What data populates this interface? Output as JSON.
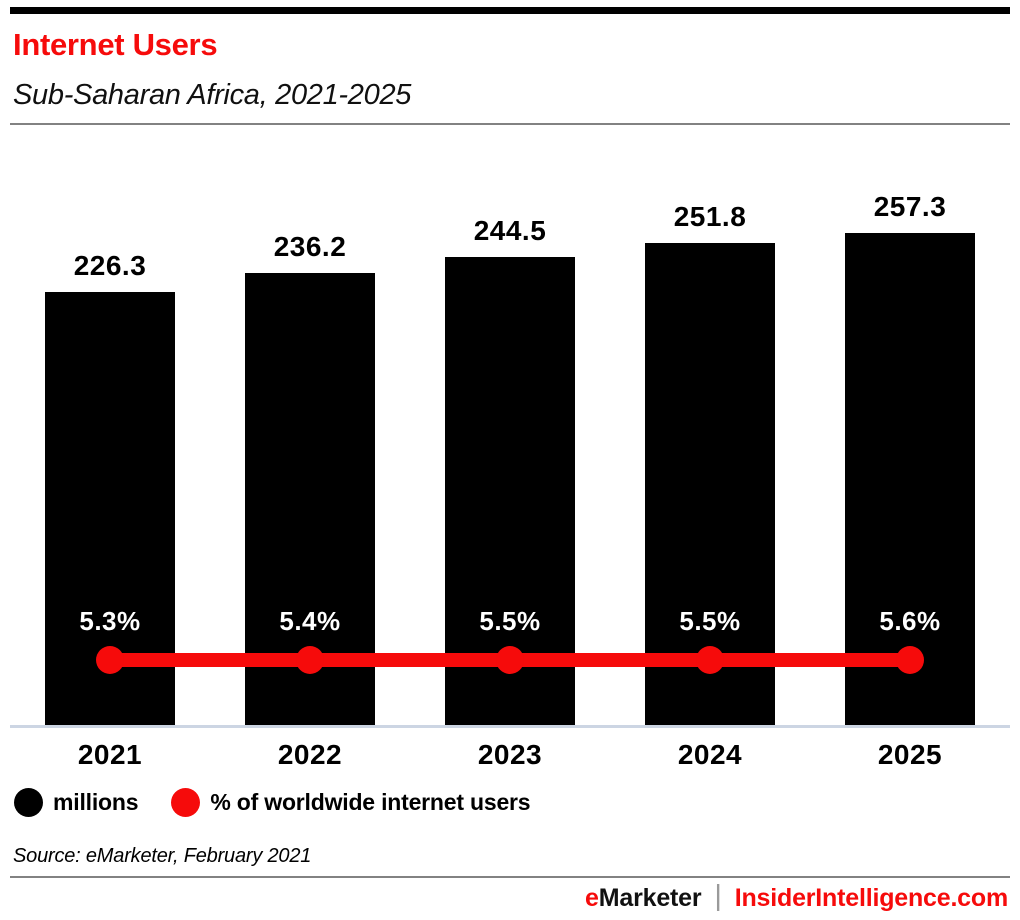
{
  "header": {
    "title": "Internet Users",
    "subtitle": "Sub-Saharan Africa, 2021-2025"
  },
  "chart_data": {
    "type": "bar",
    "title": "Internet Users",
    "subtitle": "Sub-Saharan Africa, 2021-2025",
    "categories": [
      "2021",
      "2022",
      "2023",
      "2024",
      "2025"
    ],
    "series": [
      {
        "name": "millions",
        "type": "bar",
        "color": "#000000",
        "values": [
          226.3,
          236.2,
          244.5,
          251.8,
          257.3
        ],
        "value_labels": [
          "226.3",
          "236.2",
          "244.5",
          "251.8",
          "257.3"
        ]
      },
      {
        "name": "% of worldwide internet users",
        "type": "line",
        "color": "#f60b0b",
        "values": [
          5.3,
          5.4,
          5.5,
          5.5,
          5.6
        ],
        "value_labels": [
          "5.3%",
          "5.4%",
          "5.5%",
          "5.5%",
          "5.6%"
        ]
      }
    ],
    "xlabel": "",
    "ylabel": "",
    "grid": false,
    "legend_position": "bottom",
    "value_labels_shown": true
  },
  "legend": {
    "items": [
      {
        "label": "millions",
        "color": "#000000"
      },
      {
        "label": "% of worldwide internet users",
        "color": "#f60b0b"
      }
    ]
  },
  "source": "Source: eMarketer, February 2021",
  "footer": {
    "brand_first_letter": "e",
    "brand_rest": "Marketer",
    "separator": "|",
    "site": "InsiderIntelligence.com"
  },
  "colors": {
    "accent_red": "#f60b0b",
    "bar_black": "#000000",
    "axis_line": "#ccd5e3"
  }
}
